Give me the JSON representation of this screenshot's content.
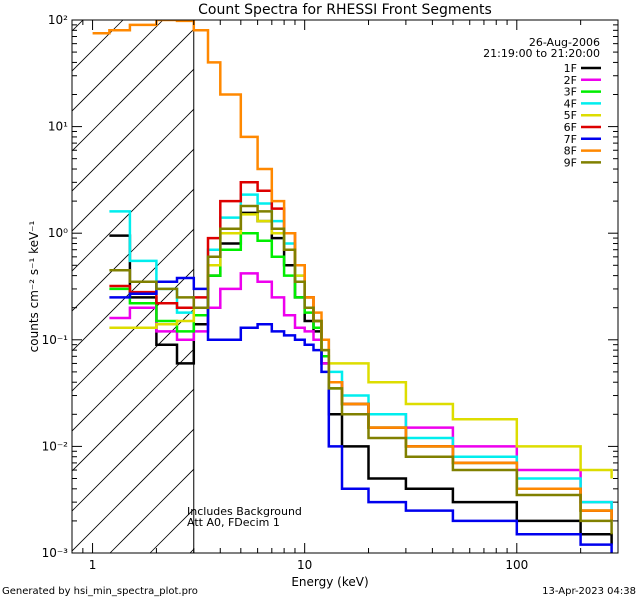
{
  "chart_data": {
    "type": "line",
    "title": "Count Spectra for RHESSI Front Segments",
    "xlabel": "Energy (keV)",
    "ylabel": "counts cm⁻² s⁻¹ keV⁻¹",
    "x_scale": "log",
    "y_scale": "log",
    "xlim": [
      0.8,
      300
    ],
    "ylim": [
      0.001,
      100
    ],
    "x_ticks": [
      {
        "value": 1,
        "label": "1"
      },
      {
        "value": 10,
        "label": "10"
      },
      {
        "value": 100,
        "label": "100"
      }
    ],
    "y_ticks": [
      {
        "value": 100,
        "label": "10²"
      },
      {
        "value": 10,
        "label": "10¹"
      },
      {
        "value": 1,
        "label": "10⁰"
      },
      {
        "value": 0.1,
        "label": "10⁻¹"
      },
      {
        "value": 0.01,
        "label": "10⁻²"
      },
      {
        "value": 0.001,
        "label": "10⁻³"
      }
    ],
    "date": "26-Aug-2006",
    "time_range": "21:19:00 to 21:20:00",
    "legend_position": "top-right",
    "hatched_region": {
      "xmin": 0.8,
      "xmax": 3
    },
    "annotations": [
      "Includes Background",
      "Att A0, FDecim 1"
    ],
    "series": [
      {
        "name": "1F",
        "color": "#000000",
        "points": [
          [
            1.2,
            0.95
          ],
          [
            1.5,
            0.25
          ],
          [
            2.0,
            0.09
          ],
          [
            2.5,
            0.06
          ],
          [
            3.0,
            0.14
          ],
          [
            3.5,
            0.4
          ],
          [
            4.0,
            0.8
          ],
          [
            5.0,
            1.55
          ],
          [
            6.0,
            1.3
          ],
          [
            7.0,
            0.9
          ],
          [
            8.0,
            0.5
          ],
          [
            9.0,
            0.25
          ],
          [
            10.0,
            0.15
          ],
          [
            11.0,
            0.12
          ],
          [
            12.0,
            0.06
          ],
          [
            13.0,
            0.02
          ],
          [
            15.0,
            0.01
          ],
          [
            20.0,
            0.005
          ],
          [
            30.0,
            0.004
          ],
          [
            50.0,
            0.003
          ],
          [
            100.0,
            0.002
          ],
          [
            200.0,
            0.0015
          ],
          [
            280.0,
            0.0012
          ]
        ]
      },
      {
        "name": "2F",
        "color": "#ee00ee",
        "points": [
          [
            1.2,
            0.16
          ],
          [
            1.5,
            0.2
          ],
          [
            2.0,
            0.12
          ],
          [
            2.5,
            0.1
          ],
          [
            3.0,
            0.12
          ],
          [
            3.5,
            0.2
          ],
          [
            4.0,
            0.3
          ],
          [
            5.0,
            0.42
          ],
          [
            6.0,
            0.35
          ],
          [
            7.0,
            0.25
          ],
          [
            8.0,
            0.17
          ],
          [
            9.0,
            0.13
          ],
          [
            10.0,
            0.12
          ],
          [
            11.0,
            0.1
          ],
          [
            12.0,
            0.06
          ],
          [
            13.0,
            0.04
          ],
          [
            15.0,
            0.025
          ],
          [
            20.0,
            0.02
          ],
          [
            30.0,
            0.015
          ],
          [
            50.0,
            0.01
          ],
          [
            100.0,
            0.006
          ],
          [
            200.0,
            0.003
          ],
          [
            280.0,
            0.0025
          ]
        ]
      },
      {
        "name": "3F",
        "color": "#00ee00",
        "points": [
          [
            1.2,
            0.3
          ],
          [
            1.5,
            0.22
          ],
          [
            2.0,
            0.15
          ],
          [
            2.5,
            0.12
          ],
          [
            3.0,
            0.17
          ],
          [
            3.5,
            0.4
          ],
          [
            4.0,
            0.7
          ],
          [
            5.0,
            1.0
          ],
          [
            6.0,
            0.85
          ],
          [
            7.0,
            0.6
          ],
          [
            8.0,
            0.4
          ],
          [
            9.0,
            0.25
          ],
          [
            10.0,
            0.18
          ],
          [
            11.0,
            0.13
          ],
          [
            12.0,
            0.07
          ],
          [
            13.0,
            0.035
          ],
          [
            15.0,
            0.025
          ],
          [
            20.0,
            0.015
          ],
          [
            30.0,
            0.01
          ],
          [
            50.0,
            0.007
          ],
          [
            100.0,
            0.004
          ],
          [
            200.0,
            0.0025
          ],
          [
            280.0,
            0.002
          ]
        ]
      },
      {
        "name": "4F",
        "color": "#00eeee",
        "points": [
          [
            1.2,
            1.6
          ],
          [
            1.5,
            0.55
          ],
          [
            2.0,
            0.3
          ],
          [
            2.5,
            0.18
          ],
          [
            3.0,
            0.2
          ],
          [
            3.5,
            0.7
          ],
          [
            4.0,
            1.4
          ],
          [
            5.0,
            2.3
          ],
          [
            6.0,
            1.9
          ],
          [
            7.0,
            1.3
          ],
          [
            8.0,
            0.8
          ],
          [
            9.0,
            0.4
          ],
          [
            10.0,
            0.2
          ],
          [
            11.0,
            0.15
          ],
          [
            12.0,
            0.1
          ],
          [
            13.0,
            0.05
          ],
          [
            15.0,
            0.03
          ],
          [
            20.0,
            0.02
          ],
          [
            30.0,
            0.012
          ],
          [
            50.0,
            0.008
          ],
          [
            100.0,
            0.005
          ],
          [
            200.0,
            0.003
          ],
          [
            280.0,
            0.0025
          ]
        ]
      },
      {
        "name": "5F",
        "color": "#dddd00",
        "points": [
          [
            1.2,
            0.13
          ],
          [
            1.5,
            0.13
          ],
          [
            2.0,
            0.14
          ],
          [
            2.5,
            0.15
          ],
          [
            3.0,
            0.2
          ],
          [
            3.5,
            0.5
          ],
          [
            4.0,
            1.0
          ],
          [
            5.0,
            1.5
          ],
          [
            6.0,
            1.3
          ],
          [
            7.0,
            1.0
          ],
          [
            8.0,
            0.7
          ],
          [
            9.0,
            0.4
          ],
          [
            10.0,
            0.25
          ],
          [
            11.0,
            0.15
          ],
          [
            12.0,
            0.08
          ],
          [
            13.0,
            0.06
          ],
          [
            15.0,
            0.06
          ],
          [
            20.0,
            0.04
          ],
          [
            30.0,
            0.025
          ],
          [
            50.0,
            0.018
          ],
          [
            100.0,
            0.01
          ],
          [
            200.0,
            0.006
          ],
          [
            280.0,
            0.005
          ]
        ]
      },
      {
        "name": "6F",
        "color": "#dd0000",
        "points": [
          [
            1.2,
            0.32
          ],
          [
            1.5,
            0.28
          ],
          [
            2.0,
            0.22
          ],
          [
            2.5,
            0.2
          ],
          [
            3.0,
            0.25
          ],
          [
            3.5,
            0.9
          ],
          [
            4.0,
            2.0
          ],
          [
            5.0,
            3.0
          ],
          [
            6.0,
            2.5
          ],
          [
            7.0,
            1.7
          ],
          [
            8.0,
            1.0
          ],
          [
            9.0,
            0.5
          ],
          [
            10.0,
            0.25
          ],
          [
            11.0,
            0.15
          ],
          [
            12.0,
            0.1
          ],
          [
            13.0,
            0.04
          ],
          [
            15.0,
            0.025
          ],
          [
            20.0,
            0.015
          ],
          [
            30.0,
            0.01
          ],
          [
            50.0,
            0.007
          ],
          [
            100.0,
            0.004
          ],
          [
            200.0,
            0.0025
          ],
          [
            280.0,
            0.002
          ]
        ]
      },
      {
        "name": "7F",
        "color": "#0000ee",
        "points": [
          [
            1.2,
            0.25
          ],
          [
            1.5,
            0.27
          ],
          [
            2.0,
            0.35
          ],
          [
            2.5,
            0.38
          ],
          [
            3.0,
            0.3
          ],
          [
            3.5,
            0.1
          ],
          [
            4.0,
            0.1
          ],
          [
            5.0,
            0.13
          ],
          [
            6.0,
            0.14
          ],
          [
            7.0,
            0.12
          ],
          [
            8.0,
            0.11
          ],
          [
            9.0,
            0.1
          ],
          [
            10.0,
            0.09
          ],
          [
            11.0,
            0.08
          ],
          [
            12.0,
            0.05
          ],
          [
            13.0,
            0.01
          ],
          [
            15.0,
            0.004
          ],
          [
            20.0,
            0.003
          ],
          [
            30.0,
            0.0025
          ],
          [
            50.0,
            0.002
          ],
          [
            100.0,
            0.0015
          ],
          [
            200.0,
            0.0012
          ],
          [
            280.0,
            0.001
          ]
        ]
      },
      {
        "name": "8F",
        "color": "#ff8800",
        "points": [
          [
            1.0,
            75.0
          ],
          [
            1.2,
            80.0
          ],
          [
            1.5,
            90.0
          ],
          [
            2.0,
            100.0
          ],
          [
            2.5,
            98.0
          ],
          [
            3.0,
            80.0
          ],
          [
            3.5,
            40.0
          ],
          [
            4.0,
            20.0
          ],
          [
            5.0,
            8.0
          ],
          [
            6.0,
            4.0
          ],
          [
            7.0,
            2.0
          ],
          [
            8.0,
            1.0
          ],
          [
            9.0,
            0.5
          ],
          [
            10.0,
            0.25
          ],
          [
            11.0,
            0.18
          ],
          [
            12.0,
            0.1
          ],
          [
            13.0,
            0.04
          ],
          [
            15.0,
            0.025
          ],
          [
            20.0,
            0.015
          ],
          [
            30.0,
            0.01
          ],
          [
            50.0,
            0.007
          ],
          [
            100.0,
            0.004
          ],
          [
            200.0,
            0.0025
          ],
          [
            280.0,
            0.002
          ]
        ]
      },
      {
        "name": "9F",
        "color": "#808000",
        "points": [
          [
            1.2,
            0.45
          ],
          [
            1.5,
            0.35
          ],
          [
            2.0,
            0.3
          ],
          [
            2.5,
            0.25
          ],
          [
            3.0,
            0.2
          ],
          [
            3.5,
            0.6
          ],
          [
            4.0,
            1.1
          ],
          [
            5.0,
            1.8
          ],
          [
            6.0,
            1.6
          ],
          [
            7.0,
            1.1
          ],
          [
            8.0,
            0.7
          ],
          [
            9.0,
            0.35
          ],
          [
            10.0,
            0.2
          ],
          [
            11.0,
            0.15
          ],
          [
            12.0,
            0.08
          ],
          [
            13.0,
            0.035
          ],
          [
            15.0,
            0.02
          ],
          [
            20.0,
            0.012
          ],
          [
            30.0,
            0.008
          ],
          [
            50.0,
            0.006
          ],
          [
            100.0,
            0.0035
          ],
          [
            200.0,
            0.002
          ],
          [
            280.0,
            0.0015
          ]
        ]
      }
    ]
  },
  "footer": {
    "generated_by": "Generated by hsi_min_spectra_plot.pro",
    "timestamp": "13-Apr-2023 04:38"
  }
}
